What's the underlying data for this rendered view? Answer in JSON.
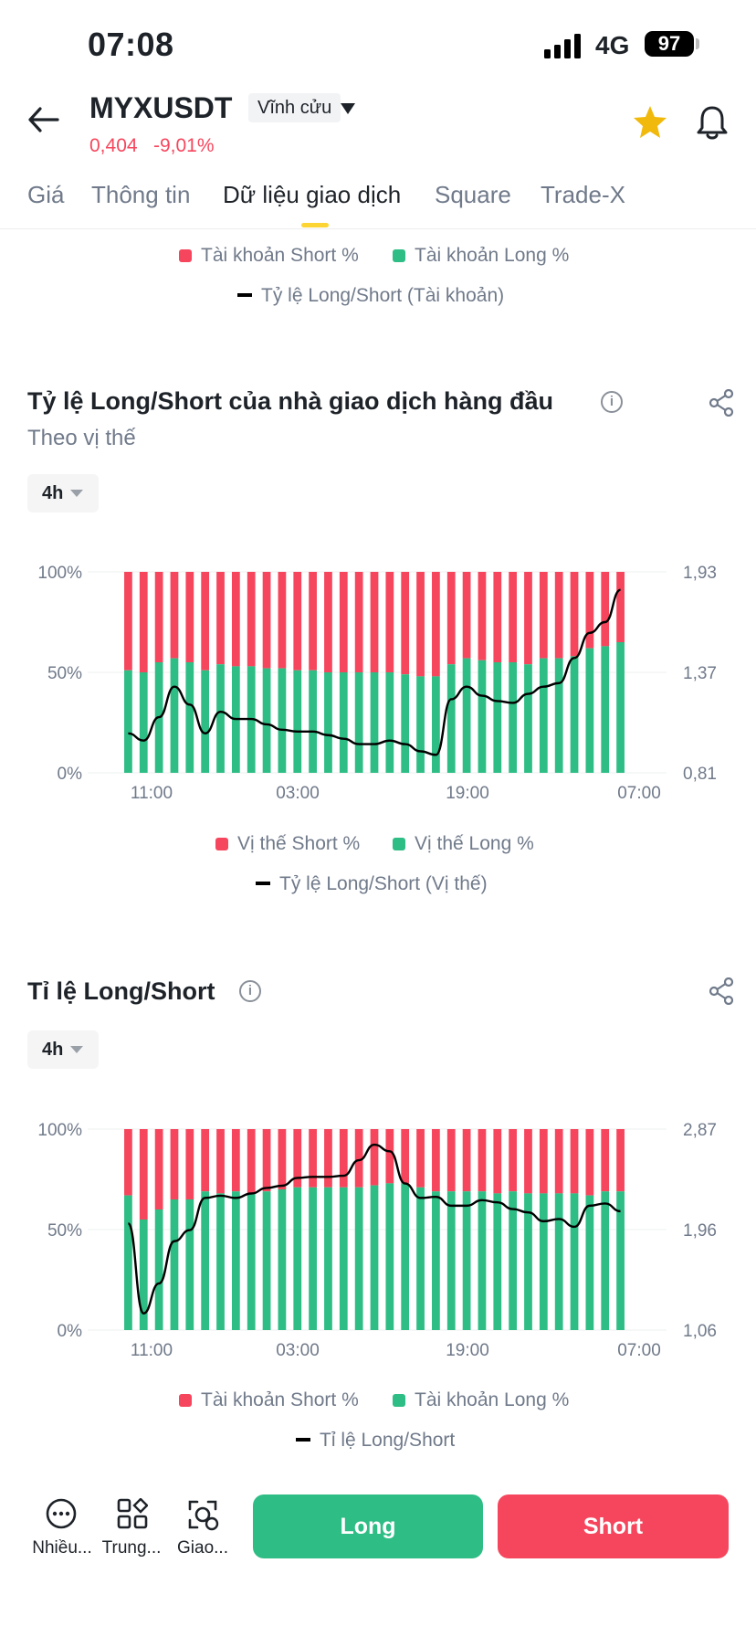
{
  "status": {
    "time": "07:08",
    "network": "4G",
    "battery": "97"
  },
  "header": {
    "title": "MYXUSDT",
    "badge": "Vĩnh cửu",
    "price": "0,404",
    "change": "-9,01%"
  },
  "tabs": [
    {
      "label": "Giá"
    },
    {
      "label": "Thông tin"
    },
    {
      "label": "Dữ liệu giao dịch",
      "active": true
    },
    {
      "label": "Square"
    },
    {
      "label": "Trade-X"
    }
  ],
  "top_legend": {
    "short": "Tài khoản Short %",
    "long": "Tài khoản Long %",
    "ratio": "Tỷ lệ Long/Short (Tài khoản)"
  },
  "section1": {
    "title": "Tỷ lệ Long/Short của nhà giao dịch hàng đầu",
    "subtitle": "Theo vị thế",
    "interval": "4h",
    "legend": {
      "short": "Vị thế Short %",
      "long": "Vị thế Long %",
      "ratio": "Tỷ lệ Long/Short (Vị thế)"
    }
  },
  "section2": {
    "title": "Tỉ lệ Long/Short",
    "interval": "4h",
    "legend": {
      "short": "Tài khoản Short %",
      "long": "Tài khoản Long %",
      "ratio": "Tỉ lệ Long/Short"
    }
  },
  "colors": {
    "short": "#f6465d",
    "long": "#2ebd85",
    "ratio": "#000000",
    "accent": "#fcd535",
    "star": "#f0b90b"
  },
  "chart_data": [
    {
      "type": "bar",
      "stacked": true,
      "x_ticks": [
        "11:00",
        "03:00",
        "19:00",
        "07:00"
      ],
      "y_left": {
        "ticks": [
          "100%",
          "50%",
          "0%"
        ],
        "range": [
          0,
          100
        ]
      },
      "y_right": {
        "ticks": [
          "1,93",
          "1,37",
          "0,81"
        ],
        "range": [
          0.81,
          1.93
        ]
      },
      "series": [
        {
          "name": "Vị thế Long %",
          "values": [
            51,
            50,
            55,
            57,
            55,
            51,
            54,
            53,
            53,
            52,
            52,
            51,
            51,
            50,
            50,
            50,
            50,
            50,
            49,
            48,
            48,
            54,
            57,
            56,
            55,
            55,
            54,
            57,
            57,
            58,
            62,
            63,
            65
          ]
        },
        {
          "name": "Tỷ lệ Long/Short (Vị thế)",
          "values": [
            1.03,
            0.99,
            1.12,
            1.29,
            1.19,
            1.03,
            1.15,
            1.11,
            1.11,
            1.08,
            1.05,
            1.04,
            1.04,
            1.02,
            1.0,
            0.97,
            0.97,
            0.99,
            0.97,
            0.93,
            0.91,
            1.22,
            1.29,
            1.24,
            1.21,
            1.2,
            1.25,
            1.29,
            1.31,
            1.45,
            1.59,
            1.65,
            1.83
          ]
        }
      ]
    },
    {
      "type": "bar",
      "stacked": true,
      "x_ticks": [
        "11:00",
        "03:00",
        "19:00",
        "07:00"
      ],
      "y_left": {
        "ticks": [
          "100%",
          "50%",
          "0%"
        ],
        "range": [
          0,
          100
        ]
      },
      "y_right": {
        "ticks": [
          "2,87",
          "1,96",
          "1,06"
        ],
        "range": [
          1.06,
          2.87
        ]
      },
      "series": [
        {
          "name": "Tài khoản Long %",
          "values": [
            67,
            55,
            60,
            65,
            65,
            69,
            68,
            69,
            68,
            69,
            70,
            71,
            71,
            71,
            71,
            71,
            72,
            73,
            73,
            71,
            69,
            69,
            69,
            69,
            68,
            69,
            68,
            68,
            68,
            68,
            67,
            69,
            69
          ]
        },
        {
          "name": "Tỉ lệ Long/Short",
          "values": [
            2.02,
            1.21,
            1.48,
            1.86,
            1.96,
            2.25,
            2.27,
            2.25,
            2.29,
            2.34,
            2.36,
            2.43,
            2.44,
            2.44,
            2.45,
            2.59,
            2.73,
            2.67,
            2.38,
            2.25,
            2.26,
            2.18,
            2.18,
            2.23,
            2.21,
            2.15,
            2.12,
            2.04,
            2.06,
            1.99,
            2.18,
            2.2,
            2.13
          ]
        }
      ]
    }
  ]
}
